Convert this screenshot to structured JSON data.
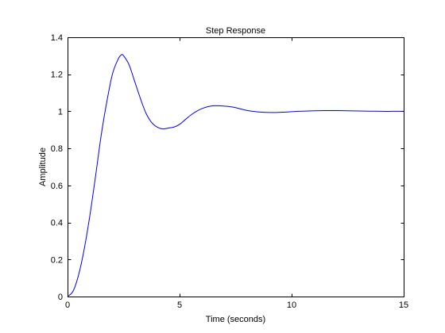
{
  "chart_data": {
    "type": "line",
    "title": "Step Response",
    "xlabel": "Time (seconds)",
    "ylabel": "Amplitude",
    "xlim": [
      0,
      15
    ],
    "ylim": [
      0,
      1.4
    ],
    "x_ticks": [
      0,
      5,
      10,
      15
    ],
    "y_ticks": [
      0,
      0.2,
      0.4,
      0.6,
      0.8,
      1,
      1.2,
      1.4
    ],
    "x_tick_labels": [
      "0",
      "5",
      "10",
      "15"
    ],
    "y_tick_labels": [
      "0",
      "0.2",
      "0.4",
      "0.6",
      "0.8",
      "1",
      "1.2",
      "1.4"
    ],
    "grid": false,
    "series": [
      {
        "color": "#0000ff",
        "x": [
          0,
          0.25,
          0.5,
          0.75,
          1.0,
          1.25,
          1.5,
          1.75,
          2.0,
          2.25,
          2.4,
          2.5,
          2.75,
          3.0,
          3.25,
          3.5,
          3.75,
          4.0,
          4.25,
          4.5,
          4.75,
          5.0,
          5.25,
          5.5,
          5.75,
          6.0,
          6.25,
          6.5,
          6.75,
          7.0,
          7.2,
          7.5,
          7.75,
          8.0,
          8.25,
          8.5,
          8.75,
          9.0,
          9.25,
          9.5,
          9.75,
          10.0,
          10.5,
          11.0,
          11.5,
          12.0,
          12.5,
          13.0,
          13.5,
          14.0,
          14.5,
          15.0
        ],
        "y": [
          0,
          0.03,
          0.12,
          0.26,
          0.44,
          0.65,
          0.87,
          1.05,
          1.2,
          1.28,
          1.305,
          1.3,
          1.25,
          1.16,
          1.07,
          0.99,
          0.94,
          0.915,
          0.905,
          0.91,
          0.915,
          0.93,
          0.955,
          0.98,
          1.0,
          1.015,
          1.025,
          1.03,
          1.03,
          1.028,
          1.026,
          1.02,
          1.012,
          1.005,
          1.0,
          0.997,
          0.995,
          0.994,
          0.994,
          0.995,
          0.996,
          0.998,
          1.001,
          1.003,
          1.004,
          1.004,
          1.003,
          1.002,
          1.001,
          1.0,
          1.0,
          1.0
        ]
      }
    ]
  }
}
